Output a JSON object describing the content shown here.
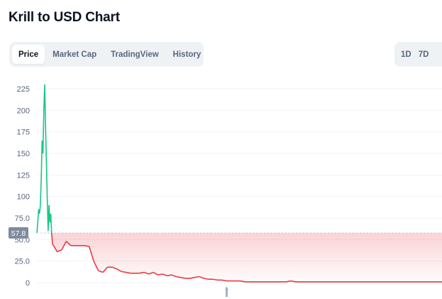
{
  "page": {
    "title": "Krill to USD Chart"
  },
  "tabs": [
    {
      "label": "Price",
      "active": true
    },
    {
      "label": "Market Cap",
      "active": false
    },
    {
      "label": "TradingView",
      "active": false
    },
    {
      "label": "History",
      "active": false
    }
  ],
  "ranges": [
    {
      "label": "1D"
    },
    {
      "label": "7D"
    }
  ],
  "colors": {
    "up": "#16c784",
    "down": "#ea3943",
    "grid": "#eff2f5",
    "badge": "#808a9d",
    "baseline_fill_top": "#fbd3d6"
  },
  "chart_data": {
    "type": "line",
    "title": "",
    "xlabel": "",
    "ylabel": "",
    "ylim": [
      0,
      240
    ],
    "y_ticks": [
      "0",
      "25.0",
      "50.0",
      "75.0",
      "100",
      "125",
      "150",
      "175",
      "200",
      "225"
    ],
    "y_tick_values": [
      0,
      25,
      50,
      75,
      100,
      125,
      150,
      175,
      200,
      225
    ],
    "baseline_value": 57.8,
    "baseline_label": "57.8",
    "grid": true,
    "series": [
      {
        "values": [
          57.8,
          70,
          85,
          80,
          90,
          120,
          165,
          150,
          200,
          230,
          180,
          140,
          95,
          60,
          90,
          70,
          80,
          57,
          45,
          36,
          38,
          48,
          43,
          43,
          43,
          43,
          42,
          25,
          14,
          12,
          18,
          18,
          16,
          13,
          12,
          11,
          11,
          11,
          12,
          10,
          12,
          9,
          10,
          8,
          9,
          7,
          6,
          5,
          5,
          6,
          7,
          5,
          4,
          4,
          3,
          3,
          2,
          2,
          2,
          2,
          1,
          1,
          1,
          1,
          1,
          1,
          1,
          1,
          1,
          1,
          2,
          1,
          1,
          1,
          1,
          1,
          1,
          1,
          1,
          1,
          1,
          1,
          1,
          1,
          1,
          1,
          1,
          1,
          1,
          1,
          1,
          1,
          1,
          1,
          1,
          1,
          1,
          1,
          1,
          1,
          1,
          1,
          1,
          1
        ]
      }
    ]
  }
}
